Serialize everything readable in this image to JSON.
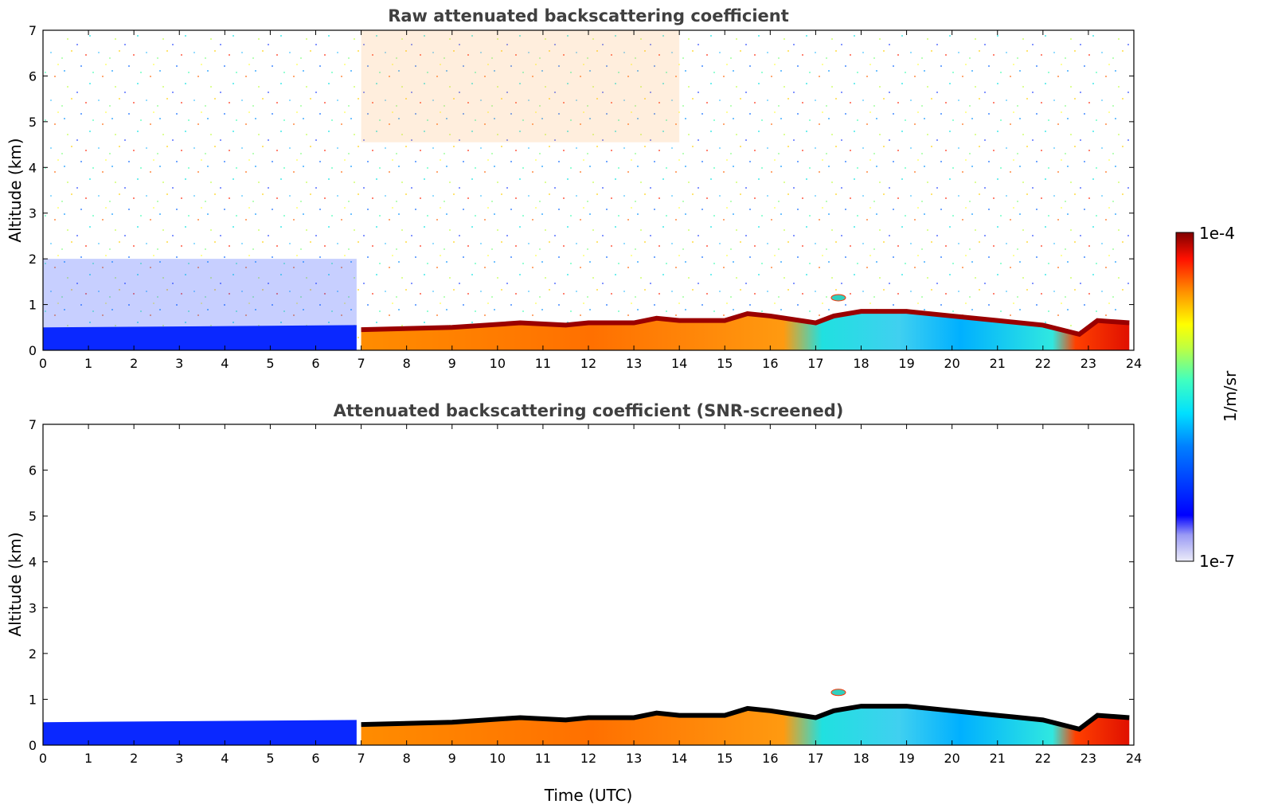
{
  "chart_data": [
    {
      "type": "heatmap",
      "title": "Raw attenuated backscattering coefficient",
      "xlabel": "",
      "ylabel": "Altitude (km)",
      "xlim": [
        0,
        24
      ],
      "ylim": [
        0,
        7
      ],
      "x_ticks": [
        "0",
        "1",
        "2",
        "3",
        "4",
        "5",
        "6",
        "7",
        "8",
        "9",
        "10",
        "11",
        "12",
        "13",
        "14",
        "15",
        "16",
        "17",
        "18",
        "19",
        "20",
        "21",
        "22",
        "23",
        "24"
      ],
      "y_ticks": [
        "0",
        "1",
        "2",
        "3",
        "4",
        "5",
        "6",
        "7"
      ],
      "boundary_layer_top_km": [
        [
          0,
          0.5
        ],
        [
          6.9,
          0.55
        ],
        [
          7,
          0.45
        ],
        [
          9,
          0.5
        ],
        [
          10.5,
          0.6
        ],
        [
          11.5,
          0.55
        ],
        [
          12,
          0.6
        ],
        [
          13,
          0.6
        ],
        [
          13.5,
          0.7
        ],
        [
          14,
          0.65
        ],
        [
          15,
          0.65
        ],
        [
          15.5,
          0.8
        ],
        [
          16,
          0.75
        ],
        [
          17,
          0.6
        ],
        [
          17.4,
          0.75
        ],
        [
          18,
          0.85
        ],
        [
          19,
          0.85
        ],
        [
          20,
          0.75
        ],
        [
          21,
          0.65
        ],
        [
          22,
          0.55
        ],
        [
          22.8,
          0.35
        ],
        [
          23.2,
          0.65
        ],
        [
          23.9,
          0.6
        ]
      ],
      "elevated_layer": {
        "x": 17.5,
        "y_km": 1.15
      },
      "noise_background": true
    },
    {
      "type": "heatmap",
      "title": "Attenuated backscattering coefficient (SNR-screened)",
      "xlabel": "Time (UTC)",
      "ylabel": "Altitude (km)",
      "xlim": [
        0,
        24
      ],
      "ylim": [
        0,
        7
      ],
      "x_ticks": [
        "0",
        "1",
        "2",
        "3",
        "4",
        "5",
        "6",
        "7",
        "8",
        "9",
        "10",
        "11",
        "12",
        "13",
        "14",
        "15",
        "16",
        "17",
        "18",
        "19",
        "20",
        "21",
        "22",
        "23",
        "24"
      ],
      "y_ticks": [
        "0",
        "1",
        "2",
        "3",
        "4",
        "5",
        "6",
        "7"
      ],
      "boundary_layer_top_km": [
        [
          0,
          0.5
        ],
        [
          6.9,
          0.55
        ],
        [
          7,
          0.45
        ],
        [
          9,
          0.5
        ],
        [
          10.5,
          0.6
        ],
        [
          11.5,
          0.55
        ],
        [
          12,
          0.6
        ],
        [
          13,
          0.6
        ],
        [
          13.5,
          0.7
        ],
        [
          14,
          0.65
        ],
        [
          15,
          0.65
        ],
        [
          15.5,
          0.8
        ],
        [
          16,
          0.75
        ],
        [
          17,
          0.6
        ],
        [
          17.4,
          0.75
        ],
        [
          18,
          0.85
        ],
        [
          19,
          0.85
        ],
        [
          20,
          0.75
        ],
        [
          21,
          0.65
        ],
        [
          22,
          0.55
        ],
        [
          22.8,
          0.35
        ],
        [
          23.2,
          0.65
        ],
        [
          23.9,
          0.6
        ]
      ],
      "elevated_layer": {
        "x": 17.5,
        "y_km": 1.15
      },
      "noise_background": false
    }
  ],
  "colorbar": {
    "label": "1/m/sr",
    "max_label": "1e-4",
    "min_label": "1e-7",
    "scale": "log",
    "colormap": "jet",
    "colors": [
      "#e6e6f5",
      "#0000ff",
      "#00ffff",
      "#ffff00",
      "#ff0000",
      "#800000"
    ]
  }
}
